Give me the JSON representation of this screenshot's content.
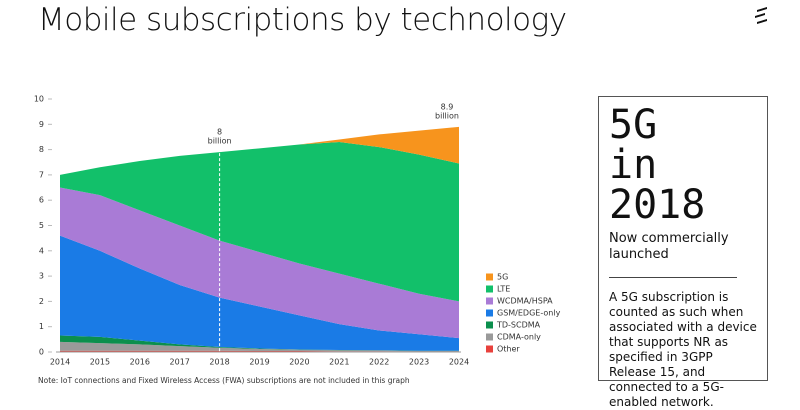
{
  "title": "Mobile subscriptions by technology",
  "chart_data": {
    "type": "stacked-area",
    "categories": [
      "2014",
      "2015",
      "2016",
      "2017",
      "2018",
      "2019",
      "2020",
      "2021",
      "2022",
      "2023",
      "2024"
    ],
    "series": [
      {
        "name": "Other",
        "color": "#e8413c",
        "values": [
          0.05,
          0.05,
          0.05,
          0.05,
          0.05,
          0.04,
          0.04,
          0.03,
          0.03,
          0.02,
          0.02
        ]
      },
      {
        "name": "CDMA-only",
        "color": "#9a9a9a",
        "values": [
          0.35,
          0.3,
          0.25,
          0.18,
          0.12,
          0.08,
          0.05,
          0.04,
          0.03,
          0.02,
          0.02
        ]
      },
      {
        "name": "TD-SCDMA",
        "color": "#0b8f4d",
        "values": [
          0.25,
          0.25,
          0.15,
          0.07,
          0.03,
          0.02,
          0.01,
          0.01,
          0.01,
          0.01,
          0.01
        ]
      },
      {
        "name": "GSM/EDGE-only",
        "color": "#1a7be6",
        "values": [
          3.95,
          3.4,
          2.85,
          2.35,
          1.95,
          1.66,
          1.35,
          1.02,
          0.78,
          0.65,
          0.5
        ]
      },
      {
        "name": "WCDMA/HSPA",
        "color": "#a97bd6",
        "values": [
          1.9,
          2.2,
          2.3,
          2.35,
          2.25,
          2.15,
          2.05,
          2.0,
          1.85,
          1.6,
          1.45
        ]
      },
      {
        "name": "LTE",
        "color": "#12c06a",
        "values": [
          0.5,
          1.1,
          1.95,
          2.75,
          3.5,
          4.1,
          4.7,
          5.2,
          5.4,
          5.5,
          5.45
        ]
      },
      {
        "name": "5G",
        "color": "#f7941d",
        "values": [
          0,
          0,
          0,
          0,
          0,
          0,
          0,
          0.1,
          0.5,
          0.95,
          1.45
        ]
      }
    ],
    "ylim": [
      0,
      10
    ],
    "yticks": [
      0,
      1,
      2,
      3,
      4,
      5,
      6,
      7,
      8,
      9,
      10
    ],
    "annotations": [
      {
        "x": "2018",
        "text": "8",
        "unit": "billion",
        "dashed": true
      },
      {
        "x": "2024",
        "text": "8.9",
        "unit": "billion",
        "dashed": false
      }
    ],
    "note": "Note: IoT connections and Fixed Wireless Access (FWA) subscriptions are not included in this graph"
  },
  "panel": {
    "headline": "5G in 2018",
    "subhead": "Now commercially launched",
    "body": "A 5G subscription is counted as such when associated with a device that supports NR as specified in 3GPP Release 15, and connected to a 5G-enabled network."
  }
}
